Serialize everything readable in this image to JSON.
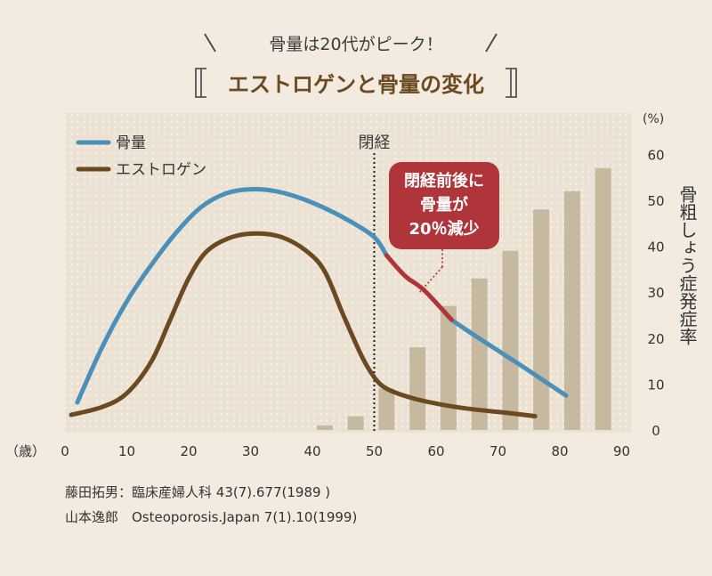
{
  "header": {
    "tagline": "骨量は20代がピーク！",
    "title": "エストロゲンと骨量の変化"
  },
  "chart_data": {
    "type": "combo",
    "x": {
      "label": "（歳）",
      "range": [
        0,
        90
      ],
      "ticks": [
        0,
        10,
        20,
        30,
        40,
        50,
        60,
        70,
        80,
        90
      ]
    },
    "y_right": {
      "label": "骨粗しょう症発症率",
      "unit": "(%)",
      "range": [
        0,
        60
      ],
      "ticks": [
        0,
        10,
        20,
        30,
        40,
        50,
        60
      ]
    },
    "menopause": {
      "label": "閉経",
      "age": 50
    },
    "legend": [
      {
        "key": "bone",
        "name": "骨量",
        "color": "#4a90b8"
      },
      {
        "key": "estrogen",
        "name": "エストロゲン",
        "color": "#6b4a22"
      }
    ],
    "bars": {
      "name": "骨粗しょう症発症率",
      "color": "#c7b9a0",
      "ages": [
        42,
        47,
        52,
        57,
        62,
        67,
        72,
        77,
        82,
        87
      ],
      "values": [
        1,
        3,
        9,
        18,
        27,
        33,
        39,
        48,
        52,
        57
      ]
    },
    "series": [
      {
        "name": "骨量",
        "key": "bone",
        "x": [
          2,
          6,
          10,
          14,
          18,
          22,
          26,
          30,
          34,
          38,
          42,
          46,
          50,
          52
        ],
        "y": [
          6,
          18,
          28,
          36,
          43,
          48.5,
          51.5,
          52.4,
          52,
          50.5,
          48.3,
          45.5,
          42,
          38
        ]
      },
      {
        "name": "骨量（閉経前後）",
        "key": "bone-decline",
        "x": [
          52,
          55,
          58,
          62.5
        ],
        "y": [
          38,
          33.5,
          30.5,
          24
        ]
      },
      {
        "name": "骨量",
        "key": "bone-late",
        "x": [
          62.5,
          66,
          70,
          74,
          78,
          81
        ],
        "y": [
          24,
          20.8,
          17.3,
          13.8,
          10.2,
          7.5
        ]
      },
      {
        "name": "エストロゲン",
        "key": "estrogen",
        "x": [
          1,
          6,
          10,
          14,
          17,
          20,
          23,
          27,
          31,
          35,
          39,
          42,
          45,
          48,
          50,
          52,
          56,
          61,
          66,
          71,
          76
        ],
        "y": [
          3.3,
          5,
          8,
          15,
          24,
          33,
          39,
          42,
          42.8,
          42,
          39,
          34.5,
          25,
          16,
          11.5,
          9,
          7,
          5.5,
          4.5,
          3.8,
          3
        ]
      }
    ],
    "callout": {
      "lines": [
        "閉経前後に",
        "骨量が",
        "20％減少"
      ],
      "color": "#b0353a"
    }
  },
  "sources": {
    "line1": "藤田拓男：臨床産婦人科 43(7).677(1989 )",
    "line2": "山本逸郎　Osteoporosis.Japan 7(1).10(1999)"
  }
}
